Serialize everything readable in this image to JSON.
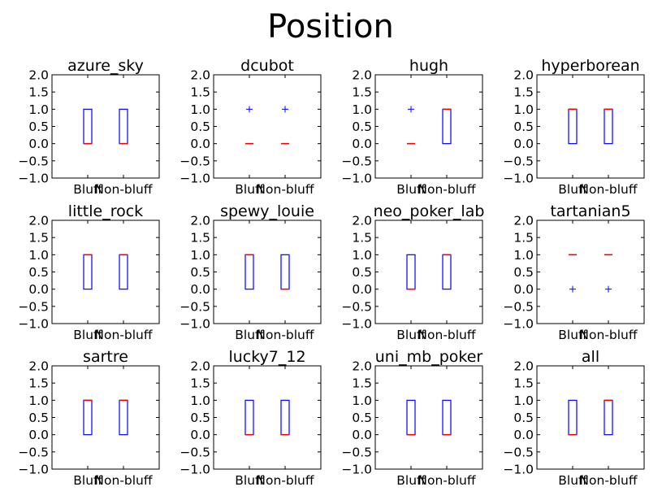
{
  "figure": {
    "title": "Position"
  },
  "style": {
    "box_color": "#0000ff",
    "median_color": "#ff0000",
    "flier_color": "#0000ff",
    "axes_color": "#000000",
    "background": "#ffffff"
  },
  "chart_data": {
    "type": "boxplot",
    "layout": "3x4 grid",
    "categories": [
      "Bluff",
      "Non-bluff"
    ],
    "ylim": [
      -1.0,
      2.0
    ],
    "yticks": [
      "2.0",
      "1.5",
      "1.0",
      "0.5",
      "0.0",
      "−0.5",
      "−1.0"
    ],
    "ytick_values": [
      2.0,
      1.5,
      1.0,
      0.5,
      0.0,
      -0.5,
      -1.0
    ],
    "subplots": [
      {
        "title": "azure_sky",
        "boxes": [
          {
            "q1": 0,
            "median": 0,
            "q3": 1,
            "fliers": []
          },
          {
            "q1": 0,
            "median": 0,
            "q3": 1,
            "fliers": []
          }
        ]
      },
      {
        "title": "dcubot",
        "boxes": [
          {
            "q1": 0,
            "median": 0,
            "q3": 0,
            "fliers": [
              1
            ]
          },
          {
            "q1": 0,
            "median": 0,
            "q3": 0,
            "fliers": [
              1
            ]
          }
        ]
      },
      {
        "title": "hugh",
        "boxes": [
          {
            "q1": 0,
            "median": 0,
            "q3": 0,
            "fliers": [
              1
            ]
          },
          {
            "q1": 0,
            "median": 1,
            "q3": 1,
            "fliers": []
          }
        ]
      },
      {
        "title": "hyperborean",
        "boxes": [
          {
            "q1": 0,
            "median": 1,
            "q3": 1,
            "fliers": []
          },
          {
            "q1": 0,
            "median": 1,
            "q3": 1,
            "fliers": []
          }
        ]
      },
      {
        "title": "little_rock",
        "boxes": [
          {
            "q1": 0,
            "median": 1,
            "q3": 1,
            "fliers": []
          },
          {
            "q1": 0,
            "median": 1,
            "q3": 1,
            "fliers": []
          }
        ]
      },
      {
        "title": "spewy_louie",
        "boxes": [
          {
            "q1": 0,
            "median": 1,
            "q3": 1,
            "fliers": []
          },
          {
            "q1": 0,
            "median": 0,
            "q3": 1,
            "fliers": []
          }
        ]
      },
      {
        "title": "neo_poker_lab",
        "boxes": [
          {
            "q1": 0,
            "median": 0,
            "q3": 1,
            "fliers": []
          },
          {
            "q1": 0,
            "median": 1,
            "q3": 1,
            "fliers": []
          }
        ]
      },
      {
        "title": "tartanian5",
        "boxes": [
          {
            "q1": 1,
            "median": 1,
            "q3": 1,
            "fliers": [
              0
            ]
          },
          {
            "q1": 1,
            "median": 1,
            "q3": 1,
            "fliers": [
              0
            ]
          }
        ]
      },
      {
        "title": "sartre",
        "boxes": [
          {
            "q1": 0,
            "median": 1,
            "q3": 1,
            "fliers": []
          },
          {
            "q1": 0,
            "median": 1,
            "q3": 1,
            "fliers": []
          }
        ]
      },
      {
        "title": "lucky7_12",
        "boxes": [
          {
            "q1": 0,
            "median": 0,
            "q3": 1,
            "fliers": []
          },
          {
            "q1": 0,
            "median": 0,
            "q3": 1,
            "fliers": []
          }
        ]
      },
      {
        "title": "uni_mb_poker",
        "boxes": [
          {
            "q1": 0,
            "median": 0,
            "q3": 1,
            "fliers": []
          },
          {
            "q1": 0,
            "median": 0,
            "q3": 1,
            "fliers": []
          }
        ]
      },
      {
        "title": "all",
        "boxes": [
          {
            "q1": 0,
            "median": 0,
            "q3": 1,
            "fliers": []
          },
          {
            "q1": 0,
            "median": 1,
            "q3": 1,
            "fliers": []
          }
        ]
      }
    ]
  }
}
